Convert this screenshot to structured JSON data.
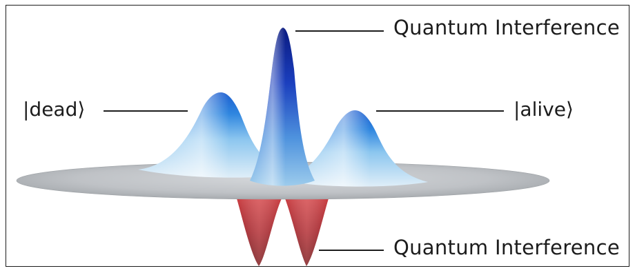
{
  "figure": {
    "labels": {
      "top_peak": "Quantum Interference",
      "bottom_peaks": "Quantum Interference",
      "left_peak": "|dead⟩",
      "right_peak": "|alive⟩"
    },
    "colors": {
      "peak_blue_dark": "#0c1f8c",
      "peak_blue_light": "#7fc4f2",
      "disk_gray": "#b8bcc0",
      "trough_red_dark": "#6e0810",
      "trough_red_light": "#d6484a",
      "leader_line": "#1c1c1c"
    }
  }
}
